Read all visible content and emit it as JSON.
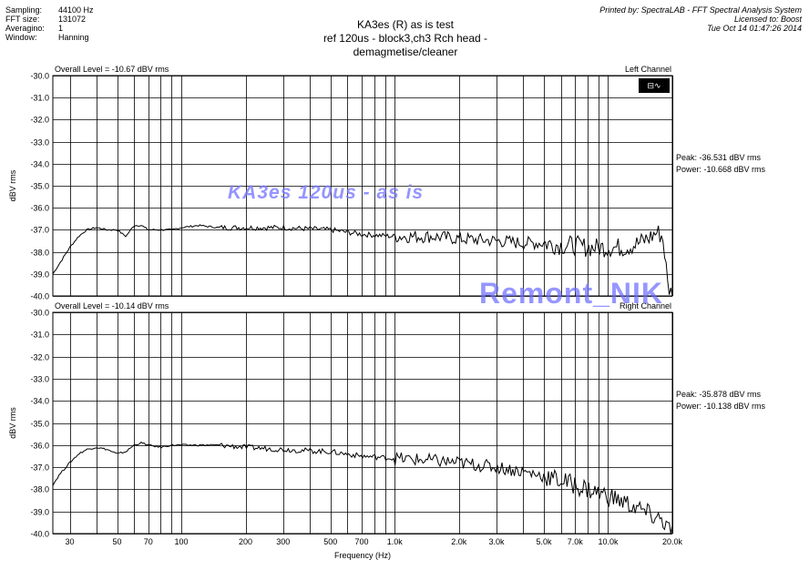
{
  "header": {
    "labels": [
      "Sampling:",
      "FFT size:",
      "Averagino:",
      "Window:"
    ],
    "values": [
      "44100 Hz",
      "131072",
      "1",
      "Hanning"
    ],
    "title": "KA3es (R) as is test",
    "subtitle": "ref 120us - block3,ch3 Rch head -demagmetise/cleaner",
    "printed_by": "Printed by: SpectraLAB - FFT Spectral Analysis System",
    "licensed": "Licensed to: Boost",
    "datetime": "Tue Oct 14 01:47:26 2014"
  },
  "watermarks": {
    "top": "KA3es 120us - as is",
    "bottom": "Remont_NIK"
  },
  "icon": "spectrum-icon",
  "colors": {
    "trace": "#000000",
    "grid": "#000000",
    "watermark": "#6b6bff"
  },
  "chart_data": [
    {
      "type": "line",
      "xscale": "log",
      "xlim": [
        25,
        20000
      ],
      "ylim": [
        -40,
        -30
      ],
      "ylabel": "dBV rms",
      "xlabel": "",
      "yticks": [
        "-30.0",
        "-31.0",
        "-32.0",
        "-33.0",
        "-34.0",
        "-35.0",
        "-36.0",
        "-37.0",
        "-38.0",
        "-39.0",
        "-40.0"
      ],
      "overall": "Overall Level = -10.67 dBV rms",
      "channel": "Left Channel",
      "peak": "Peak: -36.531 dBV rms",
      "power": "Power: -10.668 dBV rms",
      "series": [
        {
          "x": [
            25,
            27,
            30,
            33,
            36,
            40,
            45,
            50,
            55,
            60,
            65,
            70,
            80,
            90,
            100,
            120,
            150,
            200,
            300,
            500,
            700,
            1000,
            1500,
            2000,
            3000,
            4000,
            5000,
            6000,
            7000,
            8000,
            10000,
            12000,
            14000,
            16000,
            17000,
            18000,
            18500,
            19000,
            20000
          ],
          "y": [
            -39.0,
            -38.5,
            -37.8,
            -37.3,
            -37.0,
            -36.9,
            -37.0,
            -37.0,
            -37.3,
            -36.8,
            -36.8,
            -37.0,
            -37.0,
            -37.0,
            -36.9,
            -36.8,
            -36.9,
            -36.9,
            -36.9,
            -37.0,
            -37.2,
            -37.3,
            -37.3,
            -37.4,
            -37.5,
            -37.6,
            -37.6,
            -37.7,
            -37.7,
            -37.8,
            -37.8,
            -37.8,
            -37.6,
            -37.3,
            -37.1,
            -37.3,
            -38.2,
            -39.5,
            -40.0
          ]
        }
      ]
    },
    {
      "type": "line",
      "xscale": "log",
      "xlim": [
        25,
        20000
      ],
      "ylim": [
        -40,
        -30
      ],
      "ylabel": "dBV rms",
      "xlabel": "Frequency (Hz)",
      "yticks": [
        "-30.0",
        "-31.0",
        "-32.0",
        "-33.0",
        "-34.0",
        "-35.0",
        "-36.0",
        "-37.0",
        "-38.0",
        "-39.0",
        "-40.0"
      ],
      "xticks": [
        30,
        50,
        70,
        100,
        200,
        300,
        500,
        700,
        1000,
        2000,
        3000,
        5000,
        7000,
        10000,
        20000
      ],
      "xtick_labels": [
        "30",
        "50",
        "70",
        "100",
        "200",
        "300",
        "500",
        "700",
        "1.0k",
        "2.0k",
        "3.0k",
        "5.0k",
        "7.0k",
        "10.0k",
        "20.0k"
      ],
      "overall": "Overall Level = -10.14 dBV rms",
      "channel": "Right Channel",
      "peak": "Peak: -35.878 dBV rms",
      "power": "Power: -10.138 dBV rms",
      "series": [
        {
          "x": [
            25,
            27,
            30,
            33,
            36,
            40,
            45,
            50,
            55,
            60,
            65,
            70,
            80,
            90,
            100,
            120,
            150,
            200,
            300,
            500,
            700,
            1000,
            1500,
            2000,
            3000,
            4000,
            5000,
            6000,
            7000,
            8000,
            10000,
            12000,
            14000,
            16000,
            17000,
            18000,
            19000,
            20000
          ],
          "y": [
            -37.8,
            -37.3,
            -36.8,
            -36.4,
            -36.2,
            -36.1,
            -36.2,
            -36.4,
            -36.3,
            -36.0,
            -35.9,
            -36.0,
            -36.1,
            -36.0,
            -36.0,
            -36.0,
            -36.0,
            -36.1,
            -36.2,
            -36.3,
            -36.5,
            -36.6,
            -36.7,
            -36.8,
            -37.0,
            -37.2,
            -37.4,
            -37.6,
            -37.8,
            -38.0,
            -38.3,
            -38.6,
            -38.9,
            -39.2,
            -39.3,
            -39.4,
            -39.7,
            -40.0
          ]
        }
      ]
    }
  ]
}
